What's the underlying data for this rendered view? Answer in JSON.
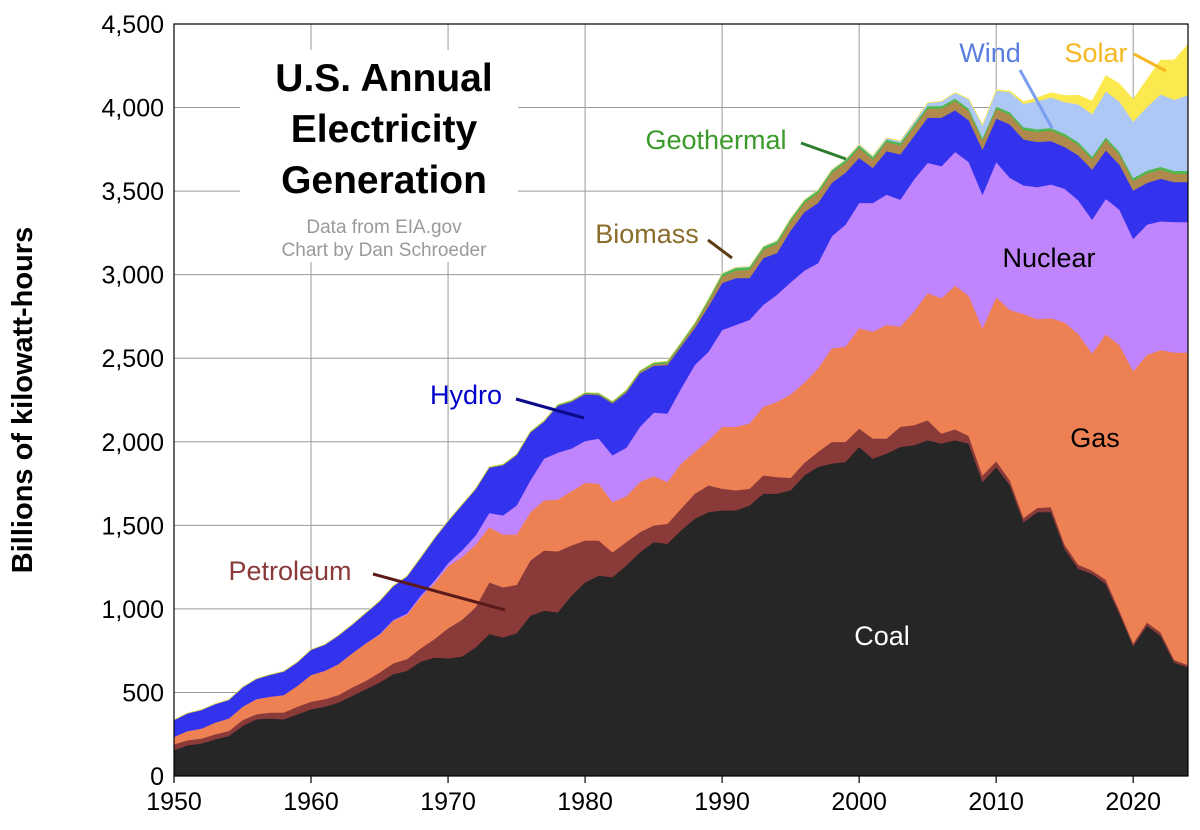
{
  "chart_data": {
    "type": "area",
    "stacked": true,
    "title_lines": [
      "U.S. Annual",
      "Electricity",
      "Generation"
    ],
    "credit_lines": [
      "Data from EIA.gov",
      "Chart by Dan Schroeder"
    ],
    "ylabel": "Billions of kilowatt-hours",
    "xlim": [
      1950,
      2024
    ],
    "ylim": [
      0,
      4500
    ],
    "x_ticks": [
      1950,
      1960,
      1970,
      1980,
      1990,
      2000,
      2010,
      2020
    ],
    "y_ticks": [
      0,
      500,
      1000,
      1500,
      2000,
      2500,
      3000,
      3500,
      4000,
      4500
    ],
    "y_tick_labels": [
      "0",
      "500",
      "1,000",
      "1,500",
      "2,000",
      "2,500",
      "3,000",
      "3,500",
      "4,000",
      "4,500"
    ],
    "grid": true,
    "legend": "inline labels",
    "x": [
      1950,
      1951,
      1952,
      1953,
      1954,
      1955,
      1956,
      1957,
      1958,
      1959,
      1960,
      1961,
      1962,
      1963,
      1964,
      1965,
      1966,
      1967,
      1968,
      1969,
      1970,
      1971,
      1972,
      1973,
      1974,
      1975,
      1976,
      1977,
      1978,
      1979,
      1980,
      1981,
      1982,
      1983,
      1984,
      1985,
      1986,
      1987,
      1988,
      1989,
      1990,
      1991,
      1992,
      1993,
      1994,
      1995,
      1996,
      1997,
      1998,
      1999,
      2000,
      2001,
      2002,
      2003,
      2004,
      2005,
      2006,
      2007,
      2008,
      2009,
      2010,
      2011,
      2012,
      2013,
      2014,
      2015,
      2016,
      2017,
      2018,
      2019,
      2020,
      2021,
      2022,
      2023,
      2024
    ],
    "series": [
      {
        "name": "Coal",
        "color": "#262626",
        "label_color": "#ffffff",
        "values": [
          155,
          185,
          195,
          220,
          240,
          300,
          340,
          345,
          340,
          370,
          400,
          415,
          440,
          480,
          520,
          560,
          610,
          630,
          685,
          710,
          705,
          715,
          770,
          850,
          830,
          855,
          960,
          990,
          980,
          1080,
          1160,
          1200,
          1190,
          1260,
          1340,
          1400,
          1390,
          1470,
          1540,
          1580,
          1590,
          1590,
          1620,
          1690,
          1690,
          1710,
          1800,
          1850,
          1870,
          1880,
          1970,
          1900,
          1930,
          1970,
          1980,
          2010,
          1990,
          2010,
          1990,
          1760,
          1850,
          1740,
          1520,
          1580,
          1580,
          1360,
          1240,
          1210,
          1150,
          970,
          780,
          900,
          840,
          680,
          650
        ]
      },
      {
        "name": "Petroleum",
        "color": "#8b3a3a",
        "label_color": "#8b3a3a",
        "values": [
          35,
          30,
          30,
          30,
          30,
          35,
          30,
          35,
          40,
          45,
          45,
          45,
          45,
          50,
          50,
          60,
          65,
          70,
          80,
          110,
          180,
          220,
          240,
          310,
          300,
          290,
          330,
          360,
          365,
          300,
          250,
          210,
          150,
          140,
          120,
          100,
          120,
          130,
          150,
          160,
          130,
          120,
          100,
          110,
          100,
          75,
          75,
          90,
          130,
          120,
          110,
          120,
          90,
          120,
          120,
          120,
          60,
          65,
          45,
          40,
          35,
          30,
          25,
          25,
          30,
          25,
          25,
          20,
          25,
          20,
          15,
          20,
          20,
          15,
          15
        ]
      },
      {
        "name": "Gas",
        "color": "#ee8153",
        "label_color": "#000000",
        "values": [
          45,
          55,
          60,
          70,
          75,
          80,
          90,
          95,
          105,
          125,
          160,
          170,
          185,
          205,
          225,
          225,
          255,
          265,
          305,
          335,
          370,
          375,
          375,
          330,
          315,
          300,
          290,
          300,
          310,
          325,
          345,
          340,
          300,
          275,
          300,
          295,
          250,
          270,
          250,
          270,
          370,
          380,
          390,
          410,
          450,
          500,
          480,
          500,
          560,
          570,
          600,
          640,
          680,
          600,
          680,
          760,
          810,
          860,
          840,
          880,
          980,
          1020,
          1220,
          1130,
          1130,
          1330,
          1380,
          1300,
          1470,
          1590,
          1630,
          1600,
          1690,
          1840,
          1870
        ]
      },
      {
        "name": "Nuclear",
        "color": "#c084fc",
        "label_color": "#000000",
        "values": [
          0,
          0,
          0,
          0,
          0,
          0,
          0,
          0,
          0,
          0,
          0,
          0,
          0,
          0,
          0,
          5,
          5,
          8,
          10,
          15,
          20,
          40,
          55,
          85,
          115,
          175,
          190,
          250,
          280,
          255,
          250,
          270,
          280,
          290,
          330,
          380,
          410,
          450,
          520,
          530,
          580,
          610,
          620,
          610,
          640,
          670,
          670,
          630,
          670,
          730,
          750,
          770,
          780,
          760,
          790,
          780,
          790,
          800,
          800,
          800,
          810,
          790,
          770,
          790,
          800,
          800,
          800,
          800,
          810,
          810,
          790,
          780,
          770,
          780,
          780
        ]
      },
      {
        "name": "Hydro",
        "color": "#3333ee",
        "label_color": "#0000cc",
        "values": [
          100,
          105,
          110,
          110,
          110,
          115,
          120,
          130,
          140,
          140,
          150,
          155,
          170,
          170,
          180,
          195,
          200,
          220,
          225,
          250,
          250,
          270,
          275,
          270,
          300,
          300,
          285,
          220,
          280,
          280,
          280,
          260,
          310,
          330,
          320,
          280,
          290,
          250,
          220,
          270,
          280,
          280,
          250,
          280,
          250,
          310,
          350,
          360,
          320,
          310,
          270,
          210,
          260,
          270,
          260,
          270,
          290,
          250,
          250,
          270,
          260,
          320,
          275,
          270,
          260,
          250,
          270,
          300,
          290,
          270,
          290,
          250,
          255,
          240,
          240
        ]
      },
      {
        "name": "Biomass",
        "color": "#b0894c",
        "label_color": "#8b6c2a",
        "values": [
          2,
          2,
          2,
          2,
          2,
          2,
          2,
          2,
          2,
          2,
          2,
          2,
          2,
          2,
          2,
          2,
          3,
          3,
          3,
          3,
          3,
          3,
          3,
          3,
          3,
          3,
          3,
          3,
          3,
          3,
          5,
          5,
          6,
          7,
          8,
          10,
          12,
          14,
          20,
          30,
          40,
          45,
          50,
          50,
          55,
          55,
          55,
          60,
          60,
          60,
          60,
          50,
          55,
          55,
          55,
          55,
          55,
          55,
          55,
          55,
          57,
          57,
          57,
          60,
          63,
          63,
          62,
          62,
          62,
          60,
          57,
          57,
          54,
          50,
          50
        ]
      },
      {
        "name": "Geothermal",
        "color": "#4fb84f",
        "label_color": "#3a9a2a",
        "values": [
          0,
          0,
          0,
          0,
          0,
          0,
          0,
          0,
          0,
          0,
          0,
          0,
          0,
          0,
          0,
          1,
          1,
          1,
          1,
          1,
          1,
          1,
          2,
          2,
          3,
          3,
          4,
          4,
          5,
          5,
          5,
          6,
          6,
          7,
          8,
          9,
          10,
          10,
          10,
          14,
          16,
          16,
          16,
          16,
          16,
          15,
          15,
          15,
          15,
          15,
          14,
          14,
          14,
          14,
          15,
          15,
          15,
          15,
          15,
          15,
          15,
          16,
          16,
          16,
          16,
          16,
          16,
          16,
          16,
          16,
          17,
          17,
          17,
          17,
          17
        ]
      },
      {
        "name": "Wind",
        "color": "#aec8f5",
        "label_color": "#5a7ee0",
        "values": [
          0,
          0,
          0,
          0,
          0,
          0,
          0,
          0,
          0,
          0,
          0,
          0,
          0,
          0,
          0,
          0,
          0,
          0,
          0,
          0,
          0,
          0,
          0,
          0,
          0,
          0,
          0,
          0,
          0,
          0,
          0,
          0,
          0,
          0,
          0,
          0,
          0,
          0,
          0,
          0,
          3,
          3,
          3,
          3,
          3,
          3,
          3,
          3,
          3,
          5,
          6,
          7,
          10,
          11,
          14,
          18,
          27,
          34,
          55,
          74,
          95,
          120,
          140,
          168,
          182,
          190,
          227,
          254,
          275,
          300,
          338,
          380,
          434,
          425,
          453
        ]
      },
      {
        "name": "Solar",
        "color": "#fce94f",
        "label_color": "#f5b820",
        "values": [
          0,
          0,
          0,
          0,
          0,
          0,
          0,
          0,
          0,
          0,
          0,
          0,
          0,
          0,
          0,
          0,
          0,
          0,
          0,
          0,
          0,
          0,
          0,
          0,
          0,
          0,
          0,
          0,
          0,
          0,
          0,
          0,
          0,
          0,
          0,
          0,
          0,
          0,
          0,
          0,
          0,
          0,
          0,
          0,
          0,
          0,
          0,
          0,
          0,
          0,
          1,
          1,
          1,
          1,
          1,
          1,
          1,
          1,
          2,
          3,
          4,
          6,
          12,
          20,
          28,
          38,
          54,
          77,
          93,
          107,
          132,
          164,
          204,
          238,
          303
        ]
      }
    ]
  }
}
